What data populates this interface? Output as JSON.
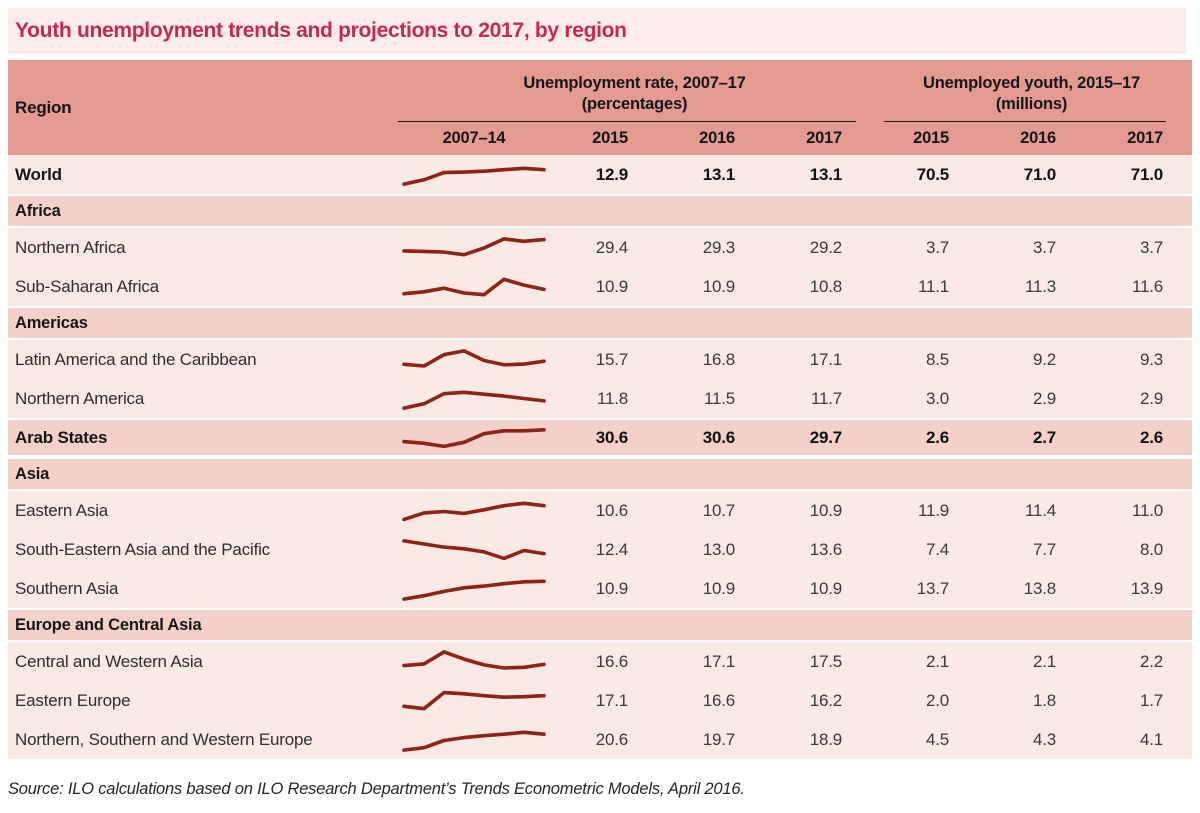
{
  "title": "Youth unemployment trends and projections to 2017, by region",
  "source": "Source: ILO calculations based on ILO Research Department’s Trends Econometric Models, April 2016.",
  "colors": {
    "title_text": "#c5294d",
    "title_band_bg": "#fceceb",
    "header_bg": "#e39b91",
    "section_row_bg": "#f3d0c8",
    "data_row_bg": "#fbe9e6",
    "sparkline": "#8e2318"
  },
  "table": {
    "header": {
      "region": "Region",
      "group1": {
        "line1": "Unemployment rate, 2007–17",
        "line2": "(percentages)"
      },
      "group2": {
        "line1": "Unemployed youth, 2015–17",
        "line2": "(millions)"
      },
      "trend_label": "2007–14",
      "rate_years": [
        "2015",
        "2016",
        "2017"
      ],
      "youth_years": [
        "2015",
        "2016",
        "2017"
      ]
    }
  },
  "chart_data": {
    "type": "table",
    "title": "Youth unemployment trends and projections to 2017, by region",
    "column_groups": [
      "Unemployment rate, 2007–17 (percentages)",
      "Unemployed youth, 2015–17 (millions)"
    ],
    "columns": [
      "Region",
      "2007–14 trend sparkline",
      "Rate 2015",
      "Rate 2016",
      "Rate 2017",
      "Youth 2015",
      "Youth 2016",
      "Youth 2017"
    ],
    "sparkline_note": "trend = normalized shape (0 low – 1 high) of unemployment rate 2007–14, 8 points",
    "rows": [
      {
        "kind": "data",
        "bold": true,
        "highlight": false,
        "region": "World",
        "trend": [
          0.12,
          0.3,
          0.6,
          0.62,
          0.66,
          0.72,
          0.78,
          0.72
        ],
        "rate": [
          12.9,
          13.1,
          13.1
        ],
        "youth": [
          70.5,
          71.0,
          71.0
        ]
      },
      {
        "kind": "section",
        "region": "Africa"
      },
      {
        "kind": "data",
        "bold": false,
        "highlight": false,
        "region": "Northern Africa",
        "trend": [
          0.38,
          0.36,
          0.33,
          0.22,
          0.5,
          0.88,
          0.78,
          0.85
        ],
        "rate": [
          29.4,
          29.3,
          29.2
        ],
        "youth": [
          3.7,
          3.7,
          3.7
        ]
      },
      {
        "kind": "data",
        "bold": false,
        "highlight": false,
        "region": "Sub-Saharan Africa",
        "trend": [
          0.22,
          0.3,
          0.45,
          0.25,
          0.18,
          0.82,
          0.58,
          0.4
        ],
        "rate": [
          10.9,
          10.9,
          10.8
        ],
        "youth": [
          11.1,
          11.3,
          11.6
        ]
      },
      {
        "kind": "section",
        "region": "Americas"
      },
      {
        "kind": "data",
        "bold": false,
        "highlight": false,
        "region": "Latin America and the Caribbean",
        "trend": [
          0.32,
          0.25,
          0.72,
          0.88,
          0.48,
          0.3,
          0.33,
          0.45
        ],
        "rate": [
          15.7,
          16.8,
          17.1
        ],
        "youth": [
          8.5,
          9.2,
          9.3
        ]
      },
      {
        "kind": "data",
        "bold": false,
        "highlight": false,
        "region": "Northern America",
        "trend": [
          0.12,
          0.3,
          0.72,
          0.78,
          0.7,
          0.62,
          0.52,
          0.42
        ],
        "rate": [
          11.8,
          11.5,
          11.7
        ],
        "youth": [
          3.0,
          2.9,
          2.9
        ]
      },
      {
        "kind": "data",
        "bold": true,
        "highlight": true,
        "region": "Arab States",
        "trend": [
          0.35,
          0.28,
          0.15,
          0.32,
          0.68,
          0.8,
          0.8,
          0.84
        ],
        "rate": [
          30.6,
          30.6,
          29.7
        ],
        "youth": [
          2.6,
          2.7,
          2.6
        ]
      },
      {
        "kind": "section",
        "region": "Asia"
      },
      {
        "kind": "data",
        "bold": false,
        "highlight": false,
        "region": "Eastern Asia",
        "trend": [
          0.15,
          0.42,
          0.48,
          0.4,
          0.55,
          0.72,
          0.82,
          0.72
        ],
        "rate": [
          10.6,
          10.7,
          10.9
        ],
        "youth": [
          11.9,
          11.4,
          11.0
        ]
      },
      {
        "kind": "data",
        "bold": false,
        "highlight": false,
        "region": "South-Eastern Asia and the Pacific",
        "trend": [
          0.88,
          0.75,
          0.62,
          0.55,
          0.42,
          0.15,
          0.48,
          0.35
        ],
        "rate": [
          12.4,
          13.0,
          13.6
        ],
        "youth": [
          7.4,
          7.7,
          8.0
        ]
      },
      {
        "kind": "data",
        "bold": false,
        "highlight": false,
        "region": "Southern Asia",
        "trend": [
          0.08,
          0.22,
          0.4,
          0.55,
          0.62,
          0.72,
          0.8,
          0.82
        ],
        "rate": [
          10.9,
          10.9,
          10.9
        ],
        "youth": [
          13.7,
          13.8,
          13.9
        ]
      },
      {
        "kind": "section",
        "region": "Europe and Central Asia"
      },
      {
        "kind": "data",
        "bold": false,
        "highlight": false,
        "region": "Central and Western Asia",
        "trend": [
          0.35,
          0.42,
          0.92,
          0.62,
          0.38,
          0.25,
          0.28,
          0.4
        ],
        "rate": [
          16.6,
          17.1,
          17.5
        ],
        "youth": [
          2.1,
          2.1,
          2.2
        ]
      },
      {
        "kind": "data",
        "bold": false,
        "highlight": false,
        "region": "Eastern Europe",
        "trend": [
          0.28,
          0.18,
          0.85,
          0.8,
          0.72,
          0.66,
          0.68,
          0.72
        ],
        "rate": [
          17.1,
          16.6,
          16.2
        ],
        "youth": [
          2.0,
          1.8,
          1.7
        ]
      },
      {
        "kind": "data",
        "bold": false,
        "highlight": false,
        "region": "Northern, Southern and Western Europe",
        "trend": [
          0.08,
          0.18,
          0.48,
          0.6,
          0.68,
          0.74,
          0.82,
          0.74
        ],
        "rate": [
          20.6,
          19.7,
          18.9
        ],
        "youth": [
          4.5,
          4.3,
          4.1
        ]
      }
    ]
  }
}
